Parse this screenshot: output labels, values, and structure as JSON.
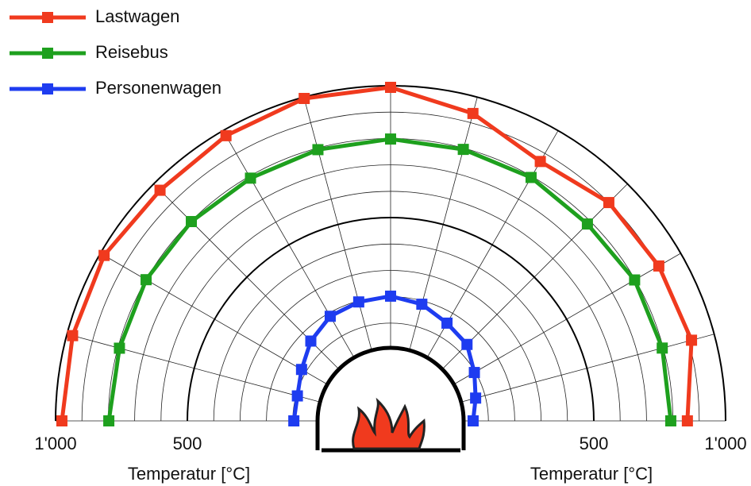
{
  "chart_data": {
    "type": "polar-half",
    "rlim": [
      0,
      1000
    ],
    "rticks": [
      {
        "value": 1000,
        "label": "1'000"
      },
      500
    ],
    "rminor": [
      100,
      200,
      300,
      400,
      600,
      700,
      800,
      900
    ],
    "axis_labels": [
      "Temperatur [°C]",
      "Temperatur [°C]"
    ],
    "series": [
      {
        "name": "Lastwagen",
        "color": "#f03a1e",
        "values": [
          976,
          978,
          984,
          966,
          978,
          995,
          994,
          936,
          865,
          900,
          904,
          911,
          855
        ]
      },
      {
        "name": "Reisebus",
        "color": "#1ea01e",
        "values": [
          798,
          794,
          800,
          798,
          792,
          794,
          798,
          795,
          795,
          785,
          798,
          796,
          792
        ]
      },
      {
        "name": "Personenwagen",
        "color": "#1e3cf0",
        "values": [
          96,
          95,
          119,
          157,
          187,
          196,
          202,
          187,
          157,
          139,
          96,
          63,
          42
        ]
      }
    ]
  }
}
